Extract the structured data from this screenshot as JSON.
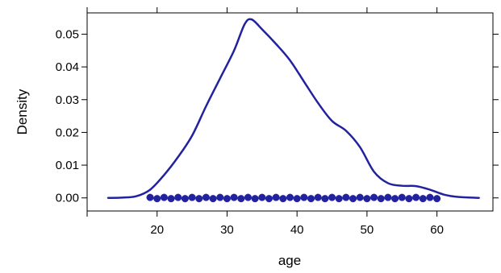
{
  "chart_data": {
    "type": "line",
    "title": "",
    "xlabel": "age",
    "ylabel": "Density",
    "xlim": [
      10,
      68
    ],
    "ylim": [
      -0.004,
      0.0565
    ],
    "grid": false,
    "legend": "none",
    "x_ticks": [
      {
        "value": 20,
        "label": "20"
      },
      {
        "value": 30,
        "label": "30"
      },
      {
        "value": 40,
        "label": "40"
      },
      {
        "value": 50,
        "label": "50"
      },
      {
        "value": 60,
        "label": "60"
      }
    ],
    "y_ticks": [
      {
        "value": 0.0,
        "label": "0.00"
      },
      {
        "value": 0.01,
        "label": "0.01"
      },
      {
        "value": 0.02,
        "label": "0.02"
      },
      {
        "value": 0.03,
        "label": "0.03"
      },
      {
        "value": 0.04,
        "label": "0.04"
      },
      {
        "value": 0.05,
        "label": "0.05"
      }
    ],
    "series": [
      {
        "kind": "density-curve",
        "color": "#2222a0",
        "points": [
          [
            13.0,
            0.0
          ],
          [
            15.0,
            0.0001
          ],
          [
            17.0,
            0.0005
          ],
          [
            19.0,
            0.0025
          ],
          [
            21.0,
            0.007
          ],
          [
            23.0,
            0.0125
          ],
          [
            25.0,
            0.019
          ],
          [
            27.0,
            0.028
          ],
          [
            29.0,
            0.0365
          ],
          [
            31.0,
            0.045
          ],
          [
            32.5,
            0.053
          ],
          [
            33.5,
            0.0545
          ],
          [
            35.0,
            0.0515
          ],
          [
            37.0,
            0.047
          ],
          [
            39.0,
            0.042
          ],
          [
            41.0,
            0.0355
          ],
          [
            43.0,
            0.029
          ],
          [
            45.0,
            0.0235
          ],
          [
            47.0,
            0.0205
          ],
          [
            49.0,
            0.0155
          ],
          [
            51.0,
            0.008
          ],
          [
            53.0,
            0.0045
          ],
          [
            55.0,
            0.0037
          ],
          [
            57.0,
            0.0036
          ],
          [
            59.0,
            0.0025
          ],
          [
            61.0,
            0.001
          ],
          [
            63.0,
            0.0003
          ],
          [
            66.0,
            0.0
          ]
        ]
      },
      {
        "kind": "rug-points",
        "color": "#2222a0",
        "y": 0,
        "x": [
          19,
          20,
          21,
          22,
          23,
          24,
          25,
          26,
          27,
          28,
          29,
          30,
          31,
          32,
          33,
          34,
          35,
          36,
          37,
          38,
          39,
          40,
          41,
          42,
          43,
          44,
          45,
          46,
          47,
          48,
          49,
          50,
          51,
          52,
          53,
          54,
          55,
          56,
          57,
          58,
          59,
          60
        ]
      }
    ]
  }
}
